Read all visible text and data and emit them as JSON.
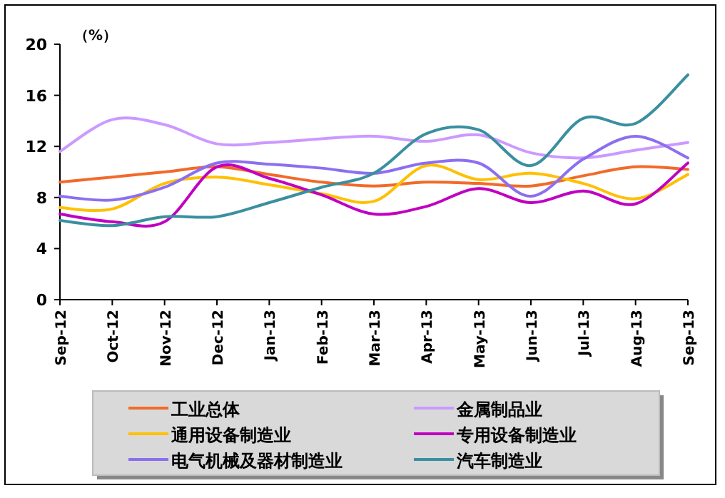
{
  "chart_data": {
    "type": "line",
    "ylabel": "（%）",
    "categories": [
      "Sep-12",
      "Oct-12",
      "Nov-12",
      "Dec-12",
      "Jan-13",
      "Feb-13",
      "Mar-13",
      "Apr-13",
      "May-13",
      "Jun-13",
      "Jul-13",
      "Aug-13",
      "Sep-13"
    ],
    "ylim": [
      0,
      20
    ],
    "yticks": [
      0,
      4,
      8,
      12,
      16,
      20
    ],
    "grid": false,
    "legend": "bottom",
    "marker": "none",
    "line_style": "solid",
    "series": [
      {
        "name": "工业总体",
        "color": "#f26a2a",
        "values": [
          9.2,
          9.6,
          10.0,
          10.4,
          9.8,
          9.2,
          8.9,
          9.2,
          9.1,
          8.9,
          9.7,
          10.4,
          10.2
        ]
      },
      {
        "name": "金属制品业",
        "color": "#cc99ff",
        "values": [
          11.6,
          14.1,
          13.7,
          12.2,
          12.3,
          12.6,
          12.8,
          12.4,
          12.9,
          11.5,
          11.1,
          11.7,
          12.3
        ]
      },
      {
        "name": "通用设备制造业",
        "color": "#ffc000",
        "values": [
          7.2,
          7.1,
          9.1,
          9.6,
          9.0,
          8.3,
          7.7,
          10.5,
          9.4,
          9.9,
          9.1,
          7.9,
          9.8
        ]
      },
      {
        "name": "专用设备制造业",
        "color": "#c000c0",
        "values": [
          6.7,
          6.1,
          6.1,
          10.4,
          9.5,
          8.2,
          6.7,
          7.3,
          8.7,
          7.6,
          8.5,
          7.5,
          10.7
        ]
      },
      {
        "name": "电气机械及器材制造业",
        "color": "#8c6ff0",
        "values": [
          8.1,
          7.8,
          8.8,
          10.7,
          10.6,
          10.3,
          9.9,
          10.7,
          10.7,
          8.1,
          11.0,
          12.8,
          11.1
        ]
      },
      {
        "name": "汽车制造业",
        "color": "#3a8fa0",
        "values": [
          6.2,
          5.8,
          6.5,
          6.5,
          7.6,
          8.8,
          9.9,
          13.0,
          13.3,
          10.5,
          14.2,
          13.8,
          17.6
        ]
      }
    ]
  }
}
